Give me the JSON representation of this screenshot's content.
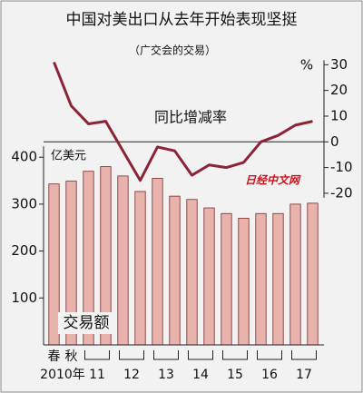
{
  "chart_data": {
    "type": "bar-line",
    "title": "中国对美出口从去年开始表现坚挺",
    "subtitle": "（广交会的交易）",
    "categories": [
      "春",
      "秋",
      null,
      null,
      null,
      null,
      null,
      null,
      null,
      null,
      null,
      null,
      null,
      null,
      null,
      null
    ],
    "x_group_labels": [
      "2010年",
      "11",
      "12",
      "13",
      "14",
      "15",
      "16",
      "17"
    ],
    "series": [
      {
        "name": "交易额",
        "type": "bar",
        "color": "#e8b2ad",
        "edge_color": "#7a2a2a",
        "values": [
          343,
          349,
          370,
          380,
          360,
          327,
          355,
          317,
          310,
          292,
          280,
          270,
          280,
          280,
          300,
          302
        ]
      },
      {
        "name": "同比增减率",
        "type": "line",
        "axis": "y2",
        "color": "#8b2435",
        "values": [
          31,
          14,
          7,
          8,
          -3.5,
          -15,
          -2,
          -3.5,
          -13,
          -9,
          -10,
          -8,
          0,
          2.5,
          6.5,
          8
        ]
      }
    ],
    "ylabel": "亿美元",
    "y2label": "%",
    "ylim": [
      0,
      619
    ],
    "yticks": [
      100,
      200,
      300,
      400
    ],
    "y2lim": [
      -79,
      34
    ],
    "y2ticks": [
      30,
      20,
      10,
      0,
      -10,
      -20
    ],
    "watermark": "日经中文网"
  }
}
